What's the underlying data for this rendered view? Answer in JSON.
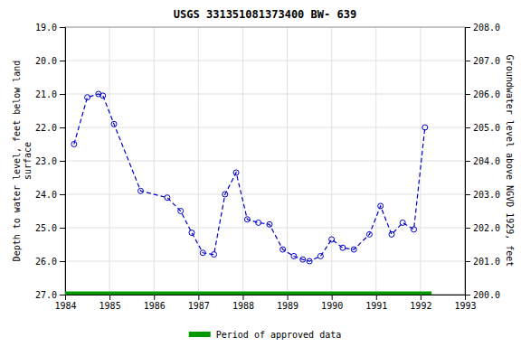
{
  "chart_data": {
    "type": "line",
    "title": "USGS 331351081373400 BW- 639",
    "ylabel": "Depth to water level, feet below land\nsurface",
    "y2label": "Groundwater level above NGVD 1929, feet",
    "x": [
      1984.2,
      1984.5,
      1984.75,
      1984.85,
      1985.1,
      1985.7,
      1986.3,
      1986.6,
      1986.85,
      1987.1,
      1987.35,
      1987.6,
      1987.85,
      1988.1,
      1988.35,
      1988.6,
      1988.9,
      1989.15,
      1989.35,
      1989.5,
      1989.75,
      1990.0,
      1990.25,
      1990.5,
      1990.85,
      1991.1,
      1991.35,
      1991.6,
      1991.85,
      1992.1
    ],
    "series": [
      {
        "color": "#0000CC",
        "marker": "circle",
        "line_style": "dashed",
        "values": [
          22.5,
          21.1,
          21.0,
          21.05,
          21.9,
          23.9,
          24.1,
          24.5,
          25.15,
          25.75,
          25.8,
          24.0,
          23.35,
          24.75,
          24.85,
          24.9,
          25.65,
          25.85,
          25.95,
          26.0,
          25.85,
          25.35,
          25.6,
          25.65,
          25.2,
          24.35,
          25.2,
          24.85,
          25.05,
          22.0
        ]
      },
      {
        "name": "Period of approved data",
        "color": "#009900",
        "line_style": "solid",
        "x": [
          1984.0,
          1992.25
        ],
        "values": [
          27.0,
          27.0
        ]
      }
    ],
    "xlim": [
      1984.0,
      1993.0
    ],
    "xticks": [
      1984,
      1985,
      1986,
      1987,
      1988,
      1989,
      1990,
      1991,
      1992,
      1993
    ],
    "ylim": [
      27.0,
      19.0
    ],
    "yticks": [
      {
        "value": 19.0,
        "label": "19.0"
      },
      {
        "value": 20.0,
        "label": "20.0"
      },
      {
        "value": 21.0,
        "label": "21.0"
      },
      {
        "value": 22.0,
        "label": "22.0"
      },
      {
        "value": 23.0,
        "label": "23.0"
      },
      {
        "value": 24.0,
        "label": "24.0"
      },
      {
        "value": 25.0,
        "label": "25.0"
      },
      {
        "value": 26.0,
        "label": "26.0"
      },
      {
        "value": 27.0,
        "label": "27.0"
      }
    ],
    "y2lim": [
      200.0,
      208.0
    ],
    "y2ticks": [
      {
        "value": 200.0,
        "label": "200.0"
      },
      {
        "value": 201.0,
        "label": "201.0"
      },
      {
        "value": 202.0,
        "label": "202.0"
      },
      {
        "value": 203.0,
        "label": "203.0"
      },
      {
        "value": 204.0,
        "label": "204.0"
      },
      {
        "value": 205.0,
        "label": "205.0"
      },
      {
        "value": 206.0,
        "label": "206.0"
      },
      {
        "value": 207.0,
        "label": "207.0"
      },
      {
        "value": 208.0,
        "label": "208.0"
      }
    ],
    "grid": true,
    "legend": "bottom"
  }
}
